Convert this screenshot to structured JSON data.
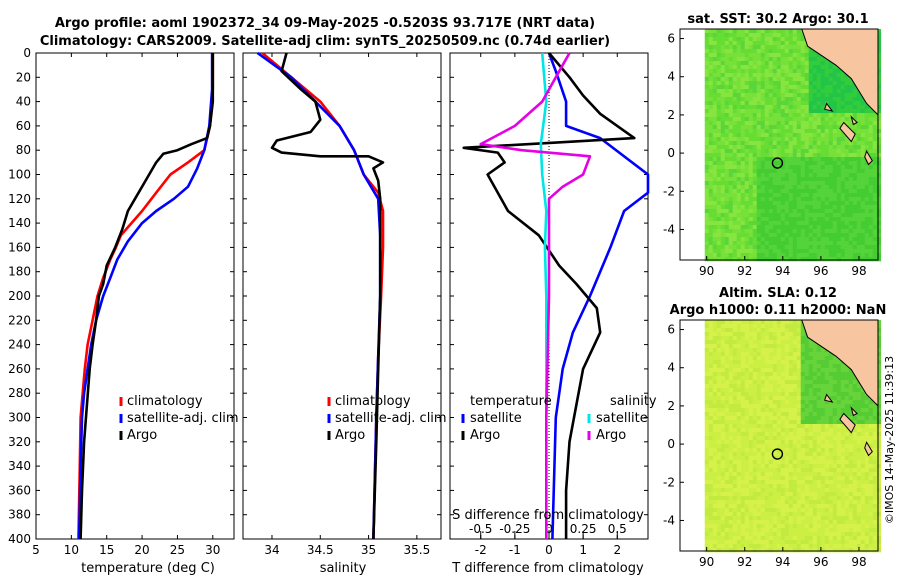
{
  "header": {
    "line1": "Argo profile: aoml 1902372_34 09-May-2025 -0.5203S 93.717E (NRT data)",
    "line2": "Climatology: CARS2009. Satellite-adj clim: synTS_20250509.nc (0.74d earlier)"
  },
  "watermark": "©IMOS 14-May-2025 11:39:13",
  "colors": {
    "clim": "#ff0000",
    "sat": "#0000ff",
    "argo": "#000000",
    "sat_s": "#00e5e5",
    "argo_s": "#e600e6"
  },
  "shared_y": {
    "ticks": [
      0,
      20,
      40,
      60,
      80,
      100,
      120,
      140,
      160,
      180,
      200,
      220,
      240,
      260,
      280,
      300,
      320,
      340,
      360,
      380,
      400
    ],
    "ylim": [
      0,
      400
    ]
  },
  "chart_data": [
    {
      "type": "line",
      "name": "temperature-profile",
      "xlabel": "temperature (deg C)",
      "xlim": [
        5,
        33
      ],
      "xticks": [
        5,
        10,
        15,
        20,
        25,
        30
      ],
      "ylim": [
        0,
        400
      ],
      "legend": [
        "climatology",
        "satellite-adj. clim",
        "Argo"
      ],
      "series": [
        {
          "name": "climatology",
          "color": "#ff0000",
          "points": [
            [
              30,
              0
            ],
            [
              30,
              30
            ],
            [
              29.6,
              60
            ],
            [
              28.8,
              80
            ],
            [
              26.5,
              90
            ],
            [
              24,
              100
            ],
            [
              22,
              115
            ],
            [
              20,
              130
            ],
            [
              18.5,
              140
            ],
            [
              17,
              150
            ],
            [
              16.3,
              160
            ],
            [
              15.5,
              170
            ],
            [
              14.5,
              185
            ],
            [
              13.7,
              200
            ],
            [
              13,
              220
            ],
            [
              12.3,
              240
            ],
            [
              11.9,
              260
            ],
            [
              11.6,
              280
            ],
            [
              11.3,
              300
            ],
            [
              11.2,
              340
            ],
            [
              11,
              400
            ]
          ]
        },
        {
          "name": "satellite-adj. clim",
          "color": "#0000ff",
          "points": [
            [
              29.9,
              0
            ],
            [
              29.9,
              30
            ],
            [
              29.5,
              60
            ],
            [
              28.8,
              80
            ],
            [
              27.8,
              95
            ],
            [
              26.5,
              110
            ],
            [
              24.5,
              120
            ],
            [
              22,
              130
            ],
            [
              20,
              140
            ],
            [
              18,
              155
            ],
            [
              16.5,
              170
            ],
            [
              15.5,
              185
            ],
            [
              14.5,
              200
            ],
            [
              13.5,
              220
            ],
            [
              12.8,
              240
            ],
            [
              12.3,
              260
            ],
            [
              11.8,
              280
            ],
            [
              11.5,
              300
            ],
            [
              11.3,
              340
            ],
            [
              11.1,
              400
            ]
          ]
        },
        {
          "name": "Argo",
          "color": "#000000",
          "points": [
            [
              30,
              0
            ],
            [
              30,
              40
            ],
            [
              29.6,
              60
            ],
            [
              29.2,
              70
            ],
            [
              27,
              75
            ],
            [
              25,
              80
            ],
            [
              23,
              83
            ],
            [
              22,
              90
            ],
            [
              20.5,
              105
            ],
            [
              19,
              120
            ],
            [
              18,
              130
            ],
            [
              17.2,
              145
            ],
            [
              16.2,
              160
            ],
            [
              15,
              175
            ],
            [
              14.5,
              190
            ],
            [
              13.9,
              200
            ],
            [
              13.5,
              220
            ],
            [
              13,
              240
            ],
            [
              12.6,
              260
            ],
            [
              12.2,
              290
            ],
            [
              11.8,
              320
            ],
            [
              11.5,
              360
            ],
            [
              11.3,
              400
            ]
          ]
        }
      ]
    },
    {
      "type": "line",
      "name": "salinity-profile",
      "xlabel": "salinity",
      "xlim": [
        33.7,
        35.75
      ],
      "xticks": [
        34,
        34.5,
        35,
        35.5
      ],
      "ylim": [
        0,
        400
      ],
      "legend": [
        "climatology",
        "satellite-adj. clim",
        "Argo"
      ],
      "series": [
        {
          "name": "climatology",
          "color": "#ff0000",
          "points": [
            [
              33.9,
              0
            ],
            [
              34.2,
              20
            ],
            [
              34.5,
              40
            ],
            [
              34.7,
              60
            ],
            [
              34.85,
              80
            ],
            [
              34.95,
              100
            ],
            [
              35.1,
              115
            ],
            [
              35.15,
              130
            ],
            [
              35.15,
              160
            ],
            [
              35.13,
              200
            ],
            [
              35.1,
              250
            ],
            [
              35.08,
              300
            ],
            [
              35.05,
              400
            ]
          ]
        },
        {
          "name": "satellite-adj. clim",
          "color": "#0000ff",
          "points": [
            [
              33.85,
              0
            ],
            [
              34.2,
              20
            ],
            [
              34.45,
              40
            ],
            [
              34.7,
              60
            ],
            [
              34.85,
              80
            ],
            [
              34.95,
              100
            ],
            [
              35.1,
              120
            ],
            [
              35.12,
              150
            ],
            [
              35.12,
              200
            ],
            [
              35.1,
              250
            ],
            [
              35.08,
              300
            ],
            [
              35.05,
              400
            ]
          ]
        },
        {
          "name": "Argo",
          "color": "#000000",
          "points": [
            [
              34.15,
              0
            ],
            [
              34.1,
              15
            ],
            [
              34.3,
              30
            ],
            [
              34.45,
              40
            ],
            [
              34.5,
              55
            ],
            [
              34.4,
              65
            ],
            [
              34.05,
              72
            ],
            [
              34.0,
              78
            ],
            [
              34.1,
              82
            ],
            [
              34.5,
              85
            ],
            [
              35.0,
              85
            ],
            [
              35.15,
              90
            ],
            [
              35.05,
              95
            ],
            [
              35.1,
              105
            ],
            [
              35.12,
              120
            ],
            [
              35.12,
              200
            ],
            [
              35.1,
              260
            ],
            [
              35.08,
              320
            ],
            [
              35.05,
              400
            ]
          ]
        }
      ]
    },
    {
      "type": "line",
      "name": "difference-profile",
      "xlabel": "T difference from climatology",
      "xlim": [
        -2.9,
        2.9
      ],
      "xticks": [
        -2,
        -1,
        0,
        1,
        2
      ],
      "top_axis_label": "S difference from climatology",
      "top_xlim": [
        -0.725,
        0.725
      ],
      "top_xticks": [
        -0.5,
        -0.25,
        0,
        0.25,
        0.5
      ],
      "ylim": [
        0,
        400
      ],
      "legend_left": {
        "title": "temperature",
        "items": [
          "satellite",
          "Argo"
        ]
      },
      "legend_right": {
        "title": "salinity",
        "items": [
          "satellite",
          "Argo"
        ]
      },
      "series": [
        {
          "name": "temperature satellite",
          "color": "#0000ff",
          "axis": "T",
          "points": [
            [
              0,
              0
            ],
            [
              0.2,
              15
            ],
            [
              0.5,
              40
            ],
            [
              0.5,
              60
            ],
            [
              1.5,
              70
            ],
            [
              2.9,
              100
            ],
            [
              2.9,
              115
            ],
            [
              2.2,
              130
            ],
            [
              1.8,
              160
            ],
            [
              1.2,
              200
            ],
            [
              0.7,
              230
            ],
            [
              0.4,
              260
            ],
            [
              0.2,
              300
            ],
            [
              0.1,
              400
            ]
          ]
        },
        {
          "name": "temperature Argo",
          "color": "#000000",
          "axis": "T",
          "points": [
            [
              0,
              0
            ],
            [
              0.6,
              20
            ],
            [
              1.0,
              35
            ],
            [
              1.5,
              50
            ],
            [
              2.5,
              70
            ],
            [
              -2.5,
              78
            ],
            [
              -1.5,
              82
            ],
            [
              -1.3,
              90
            ],
            [
              -1.8,
              100
            ],
            [
              -1.2,
              130
            ],
            [
              -0.3,
              150
            ],
            [
              0.3,
              175
            ],
            [
              0.8,
              190
            ],
            [
              1.4,
              210
            ],
            [
              1.5,
              230
            ],
            [
              1.0,
              260
            ],
            [
              0.8,
              290
            ],
            [
              0.6,
              320
            ],
            [
              0.5,
              360
            ],
            [
              0.5,
              400
            ]
          ]
        },
        {
          "name": "salinity satellite",
          "color": "#00e5e5",
          "axis": "S",
          "points": [
            [
              -0.05,
              0
            ],
            [
              -0.02,
              40
            ],
            [
              -0.06,
              75
            ],
            [
              -0.05,
              100
            ],
            [
              -0.02,
              130
            ],
            [
              -0.03,
              160
            ],
            [
              -0.02,
              200
            ],
            [
              -0.02,
              260
            ],
            [
              -0.02,
              400
            ]
          ]
        },
        {
          "name": "salinity Argo",
          "color": "#e600e6",
          "axis": "S",
          "points": [
            [
              0.15,
              0
            ],
            [
              0.05,
              20
            ],
            [
              -0.05,
              40
            ],
            [
              -0.25,
              60
            ],
            [
              -0.5,
              75
            ],
            [
              -0.2,
              80
            ],
            [
              0.3,
              85
            ],
            [
              0.25,
              100
            ],
            [
              0.1,
              110
            ],
            [
              0.0,
              120
            ],
            [
              0.0,
              150
            ],
            [
              0.0,
              200
            ],
            [
              -0.02,
              300
            ],
            [
              -0.02,
              400
            ]
          ]
        }
      ]
    },
    {
      "type": "heatmap",
      "name": "sst-map",
      "title": "sat. SST: 30.2 Argo: 30.1",
      "xlim": [
        88.6,
        99
      ],
      "ylim": [
        -5.6,
        6.5
      ],
      "xticks": [
        90,
        92,
        94,
        96,
        98
      ],
      "yticks": [
        -4,
        -2,
        0,
        2,
        4,
        6
      ],
      "argo_position": [
        93.717,
        -0.52
      ]
    },
    {
      "type": "heatmap",
      "name": "sla-map",
      "title1": "Altim. SLA: 0.12",
      "title2": "Argo h1000: 0.11 h2000: NaN",
      "xlim": [
        88.6,
        99
      ],
      "ylim": [
        -5.6,
        6.5
      ],
      "xticks": [
        90,
        92,
        94,
        96,
        98
      ],
      "yticks": [
        -4,
        -2,
        0,
        2,
        4,
        6
      ],
      "argo_position": [
        93.717,
        -0.52
      ]
    }
  ]
}
